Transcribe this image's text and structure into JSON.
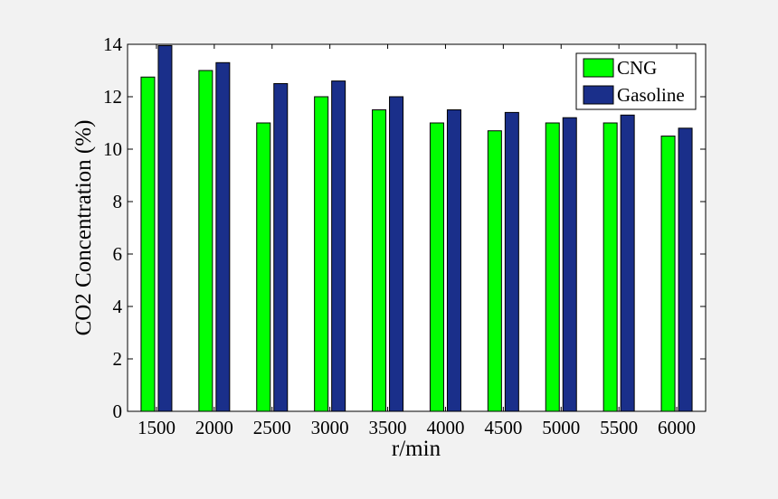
{
  "chart_data": {
    "type": "bar",
    "xlabel": "r/min",
    "ylabel": "CO2 Concentration (%)",
    "categories": [
      "1500",
      "2000",
      "2500",
      "3000",
      "3500",
      "4000",
      "4500",
      "5000",
      "5500",
      "6000"
    ],
    "series": [
      {
        "name": "CNG",
        "color": "#00ff00",
        "values": [
          12.75,
          13.0,
          11.0,
          12.0,
          11.5,
          11.0,
          10.7,
          11.0,
          11.0,
          10.5
        ]
      },
      {
        "name": "Gasoline",
        "color": "#1a2f8a",
        "values": [
          13.95,
          13.3,
          12.5,
          12.6,
          12.0,
          11.5,
          11.4,
          11.2,
          11.3,
          10.8
        ]
      }
    ],
    "ylim": [
      0,
      14
    ],
    "yticks": [
      0,
      2,
      4,
      6,
      8,
      10,
      12,
      14
    ],
    "grid": false,
    "legend_position": "top-right"
  }
}
